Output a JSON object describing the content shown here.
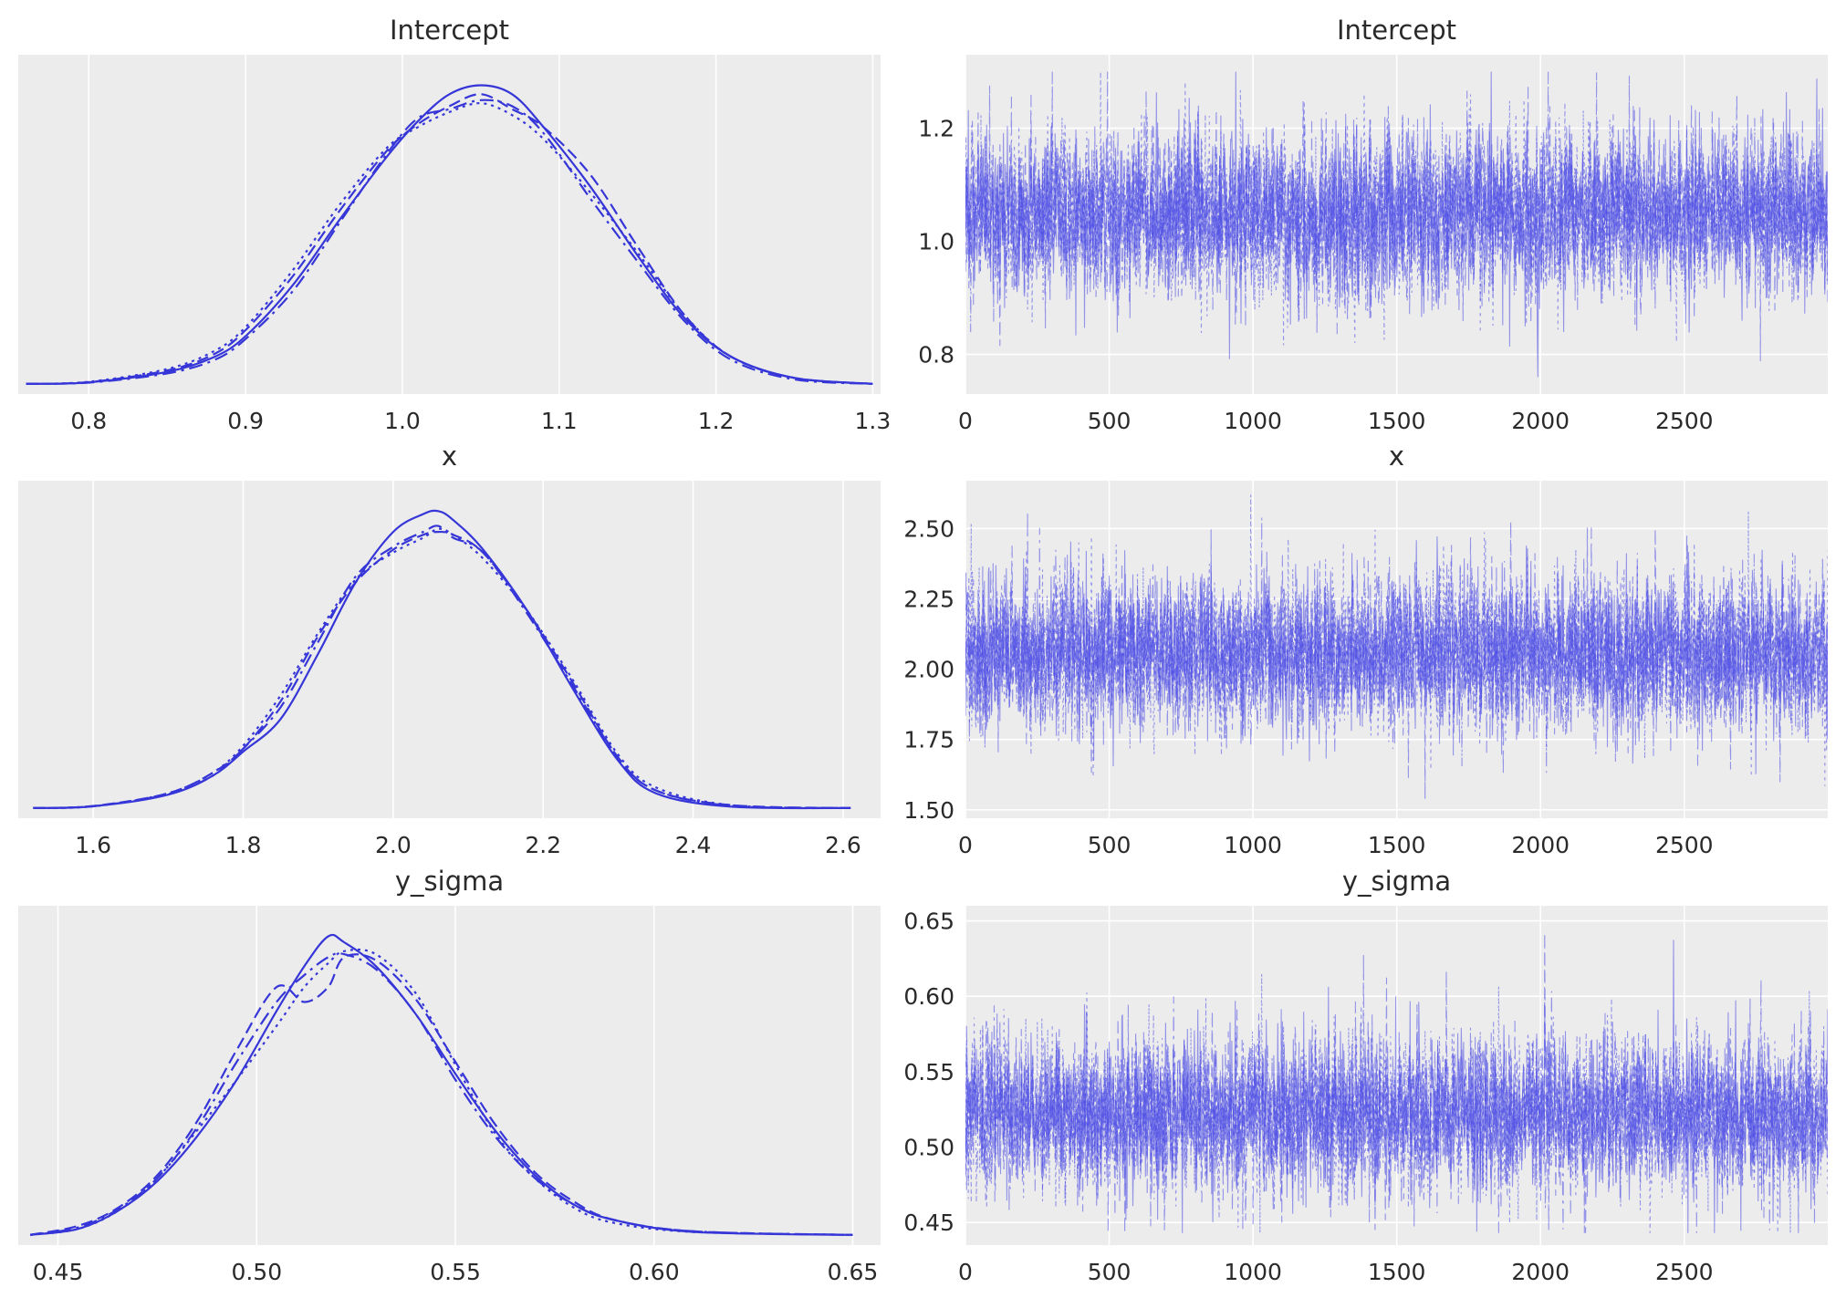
{
  "chart_data": [
    {
      "type": "line",
      "title": "Intercept",
      "panel": "density",
      "xlim": [
        0.755,
        1.305
      ],
      "xticks": [
        "0.8",
        "0.9",
        "1.0",
        "1.1",
        "1.2",
        "1.3"
      ],
      "xtick_values": [
        0.8,
        0.9,
        1.0,
        1.1,
        1.2,
        1.3
      ],
      "ylim": [
        0,
        1
      ],
      "series": [
        {
          "style": "solid",
          "x": [
            0.76,
            0.8,
            0.85,
            0.88,
            0.9,
            0.93,
            0.96,
            0.99,
            1.01,
            1.03,
            1.05,
            1.07,
            1.09,
            1.12,
            1.15,
            1.18,
            1.21,
            1.25,
            1.3
          ],
          "y": [
            0.0,
            0.005,
            0.04,
            0.09,
            0.16,
            0.33,
            0.55,
            0.76,
            0.88,
            0.97,
            1.0,
            0.97,
            0.86,
            0.66,
            0.43,
            0.22,
            0.09,
            0.02,
            0.0
          ]
        },
        {
          "style": "dashed",
          "x": [
            0.76,
            0.8,
            0.85,
            0.88,
            0.9,
            0.93,
            0.96,
            0.99,
            1.01,
            1.03,
            1.05,
            1.07,
            1.09,
            1.12,
            1.15,
            1.18,
            1.21,
            1.25,
            1.3
          ],
          "y": [
            0.0,
            0.006,
            0.045,
            0.1,
            0.18,
            0.36,
            0.58,
            0.78,
            0.87,
            0.93,
            0.97,
            0.92,
            0.86,
            0.7,
            0.46,
            0.23,
            0.09,
            0.02,
            0.0
          ]
        },
        {
          "style": "dotted",
          "x": [
            0.76,
            0.8,
            0.85,
            0.88,
            0.9,
            0.93,
            0.96,
            0.99,
            1.01,
            1.03,
            1.05,
            1.07,
            1.09,
            1.12,
            1.15,
            1.18,
            1.21,
            1.25,
            1.3
          ],
          "y": [
            0.0,
            0.007,
            0.05,
            0.11,
            0.19,
            0.38,
            0.6,
            0.79,
            0.86,
            0.91,
            0.94,
            0.9,
            0.82,
            0.64,
            0.44,
            0.23,
            0.09,
            0.02,
            0.0
          ]
        },
        {
          "style": "dashdot",
          "x": [
            0.76,
            0.8,
            0.85,
            0.88,
            0.9,
            0.93,
            0.96,
            0.99,
            1.01,
            1.03,
            1.05,
            1.07,
            1.09,
            1.12,
            1.15,
            1.18,
            1.21,
            1.25,
            1.3
          ],
          "y": [
            0.0,
            0.004,
            0.035,
            0.08,
            0.15,
            0.31,
            0.54,
            0.77,
            0.89,
            0.92,
            0.95,
            0.93,
            0.84,
            0.62,
            0.41,
            0.21,
            0.08,
            0.015,
            0.0
          ]
        }
      ]
    },
    {
      "type": "line",
      "title": "Intercept",
      "panel": "trace",
      "xlim": [
        0,
        2999
      ],
      "ylim": [
        0.73,
        1.33
      ],
      "xticks": [
        "0",
        "500",
        "1000",
        "1500",
        "2000",
        "2500"
      ],
      "xtick_values": [
        0,
        500,
        1000,
        1500,
        2000,
        2500
      ],
      "yticks": [
        "0.8",
        "1.0",
        "1.2"
      ],
      "ytick_values": [
        0.8,
        1.0,
        1.2
      ],
      "chains": 4,
      "draws": 3000,
      "center": 1.05,
      "sd": 0.075,
      "observed_min": 0.76,
      "observed_max": 1.3
    },
    {
      "type": "line",
      "title": "x",
      "panel": "density",
      "xlim": [
        1.5,
        2.65
      ],
      "xticks": [
        "1.6",
        "1.8",
        "2.0",
        "2.2",
        "2.4",
        "2.6"
      ],
      "xtick_values": [
        1.6,
        1.8,
        2.0,
        2.2,
        2.4,
        2.6
      ],
      "ylim": [
        0,
        1
      ],
      "series": [
        {
          "style": "solid",
          "x": [
            1.52,
            1.6,
            1.7,
            1.76,
            1.8,
            1.85,
            1.9,
            1.95,
            2.0,
            2.04,
            2.06,
            2.08,
            2.12,
            2.18,
            2.24,
            2.3,
            2.35,
            2.45,
            2.61
          ],
          "y": [
            0.0,
            0.006,
            0.045,
            0.11,
            0.19,
            0.3,
            0.52,
            0.76,
            0.93,
            0.99,
            1.0,
            0.97,
            0.87,
            0.66,
            0.4,
            0.16,
            0.05,
            0.005,
            0.0
          ]
        },
        {
          "style": "dashed",
          "x": [
            1.52,
            1.6,
            1.7,
            1.76,
            1.8,
            1.85,
            1.9,
            1.95,
            2.0,
            2.04,
            2.06,
            2.08,
            2.12,
            2.18,
            2.24,
            2.3,
            2.35,
            2.45,
            2.61
          ],
          "y": [
            0.0,
            0.007,
            0.05,
            0.12,
            0.2,
            0.36,
            0.58,
            0.76,
            0.87,
            0.92,
            0.93,
            0.92,
            0.86,
            0.66,
            0.42,
            0.17,
            0.06,
            0.01,
            0.0
          ]
        },
        {
          "style": "dotted",
          "x": [
            1.52,
            1.6,
            1.7,
            1.76,
            1.8,
            1.85,
            1.9,
            1.95,
            2.0,
            2.04,
            2.06,
            2.08,
            2.12,
            2.18,
            2.24,
            2.3,
            2.35,
            2.45,
            2.61
          ],
          "y": [
            0.0,
            0.006,
            0.05,
            0.12,
            0.21,
            0.38,
            0.59,
            0.77,
            0.86,
            0.91,
            0.94,
            0.92,
            0.84,
            0.66,
            0.43,
            0.18,
            0.07,
            0.01,
            0.0
          ]
        },
        {
          "style": "dashdot",
          "x": [
            1.52,
            1.6,
            1.7,
            1.76,
            1.8,
            1.85,
            1.9,
            1.95,
            2.0,
            2.04,
            2.06,
            2.08,
            2.12,
            2.18,
            2.24,
            2.3,
            2.35,
            2.45,
            2.61
          ],
          "y": [
            0.0,
            0.006,
            0.047,
            0.11,
            0.2,
            0.34,
            0.56,
            0.78,
            0.88,
            0.93,
            0.95,
            0.91,
            0.86,
            0.65,
            0.41,
            0.17,
            0.06,
            0.008,
            0.0
          ]
        }
      ]
    },
    {
      "type": "line",
      "title": "x",
      "panel": "trace",
      "xlim": [
        0,
        2999
      ],
      "ylim": [
        1.47,
        2.67
      ],
      "xticks": [
        "0",
        "500",
        "1000",
        "1500",
        "2000",
        "2500"
      ],
      "xtick_values": [
        0,
        500,
        1000,
        1500,
        2000,
        2500
      ],
      "yticks": [
        "1.50",
        "1.75",
        "2.00",
        "2.25",
        "2.50"
      ],
      "ytick_values": [
        1.5,
        1.75,
        2.0,
        2.25,
        2.5
      ],
      "chains": 4,
      "draws": 3000,
      "center": 2.06,
      "sd": 0.14,
      "observed_min": 1.52,
      "observed_max": 2.62
    },
    {
      "type": "line",
      "title": "y_sigma",
      "panel": "density",
      "xlim": [
        0.44,
        0.657
      ],
      "xticks": [
        "0.45",
        "0.50",
        "0.55",
        "0.60",
        "0.65"
      ],
      "xtick_values": [
        0.45,
        0.5,
        0.55,
        0.6,
        0.65
      ],
      "ylim": [
        0,
        1
      ],
      "series": [
        {
          "style": "solid",
          "x": [
            0.443,
            0.455,
            0.465,
            0.475,
            0.485,
            0.495,
            0.505,
            0.512,
            0.518,
            0.522,
            0.53,
            0.54,
            0.55,
            0.56,
            0.57,
            0.58,
            0.59,
            0.61,
            0.65
          ],
          "y": [
            0.0,
            0.02,
            0.08,
            0.18,
            0.33,
            0.52,
            0.75,
            0.9,
            1.0,
            0.98,
            0.9,
            0.74,
            0.54,
            0.35,
            0.2,
            0.1,
            0.05,
            0.01,
            0.0
          ]
        },
        {
          "style": "dashed",
          "x": [
            0.443,
            0.455,
            0.465,
            0.475,
            0.485,
            0.495,
            0.505,
            0.512,
            0.518,
            0.522,
            0.53,
            0.54,
            0.55,
            0.56,
            0.57,
            0.58,
            0.59,
            0.61,
            0.65
          ],
          "y": [
            0.0,
            0.03,
            0.09,
            0.2,
            0.38,
            0.62,
            0.83,
            0.78,
            0.83,
            0.93,
            0.92,
            0.79,
            0.58,
            0.37,
            0.21,
            0.11,
            0.05,
            0.012,
            0.0
          ]
        },
        {
          "style": "dotted",
          "x": [
            0.443,
            0.455,
            0.465,
            0.475,
            0.485,
            0.495,
            0.505,
            0.512,
            0.518,
            0.522,
            0.53,
            0.54,
            0.55,
            0.56,
            0.57,
            0.58,
            0.59,
            0.61,
            0.65
          ],
          "y": [
            0.0,
            0.02,
            0.08,
            0.19,
            0.35,
            0.52,
            0.7,
            0.83,
            0.91,
            0.95,
            0.94,
            0.81,
            0.57,
            0.34,
            0.19,
            0.09,
            0.04,
            0.01,
            0.0
          ]
        },
        {
          "style": "dashdot",
          "x": [
            0.443,
            0.455,
            0.465,
            0.475,
            0.485,
            0.495,
            0.505,
            0.512,
            0.518,
            0.522,
            0.53,
            0.54,
            0.55,
            0.56,
            0.57,
            0.58,
            0.59,
            0.61,
            0.65
          ],
          "y": [
            0.0,
            0.025,
            0.085,
            0.19,
            0.36,
            0.58,
            0.78,
            0.87,
            0.93,
            0.94,
            0.89,
            0.74,
            0.52,
            0.33,
            0.19,
            0.1,
            0.05,
            0.012,
            0.0
          ]
        }
      ]
    },
    {
      "type": "line",
      "title": "y_sigma",
      "panel": "trace",
      "xlim": [
        0,
        2999
      ],
      "ylim": [
        0.435,
        0.66
      ],
      "xticks": [
        "0",
        "500",
        "1000",
        "1500",
        "2000",
        "2500"
      ],
      "xtick_values": [
        0,
        500,
        1000,
        1500,
        2000,
        2500
      ],
      "yticks": [
        "0.45",
        "0.50",
        "0.55",
        "0.60",
        "0.65"
      ],
      "ytick_values": [
        0.45,
        0.5,
        0.55,
        0.6,
        0.65
      ],
      "chains": 4,
      "draws": 3000,
      "center": 0.522,
      "sd": 0.026,
      "observed_min": 0.443,
      "observed_max": 0.653
    }
  ],
  "colors": {
    "line": "#3636d8",
    "trace": "#4a4ae6",
    "panel_bg": "#ececec",
    "grid": "#ffffff",
    "text": "#2a2a2a"
  }
}
